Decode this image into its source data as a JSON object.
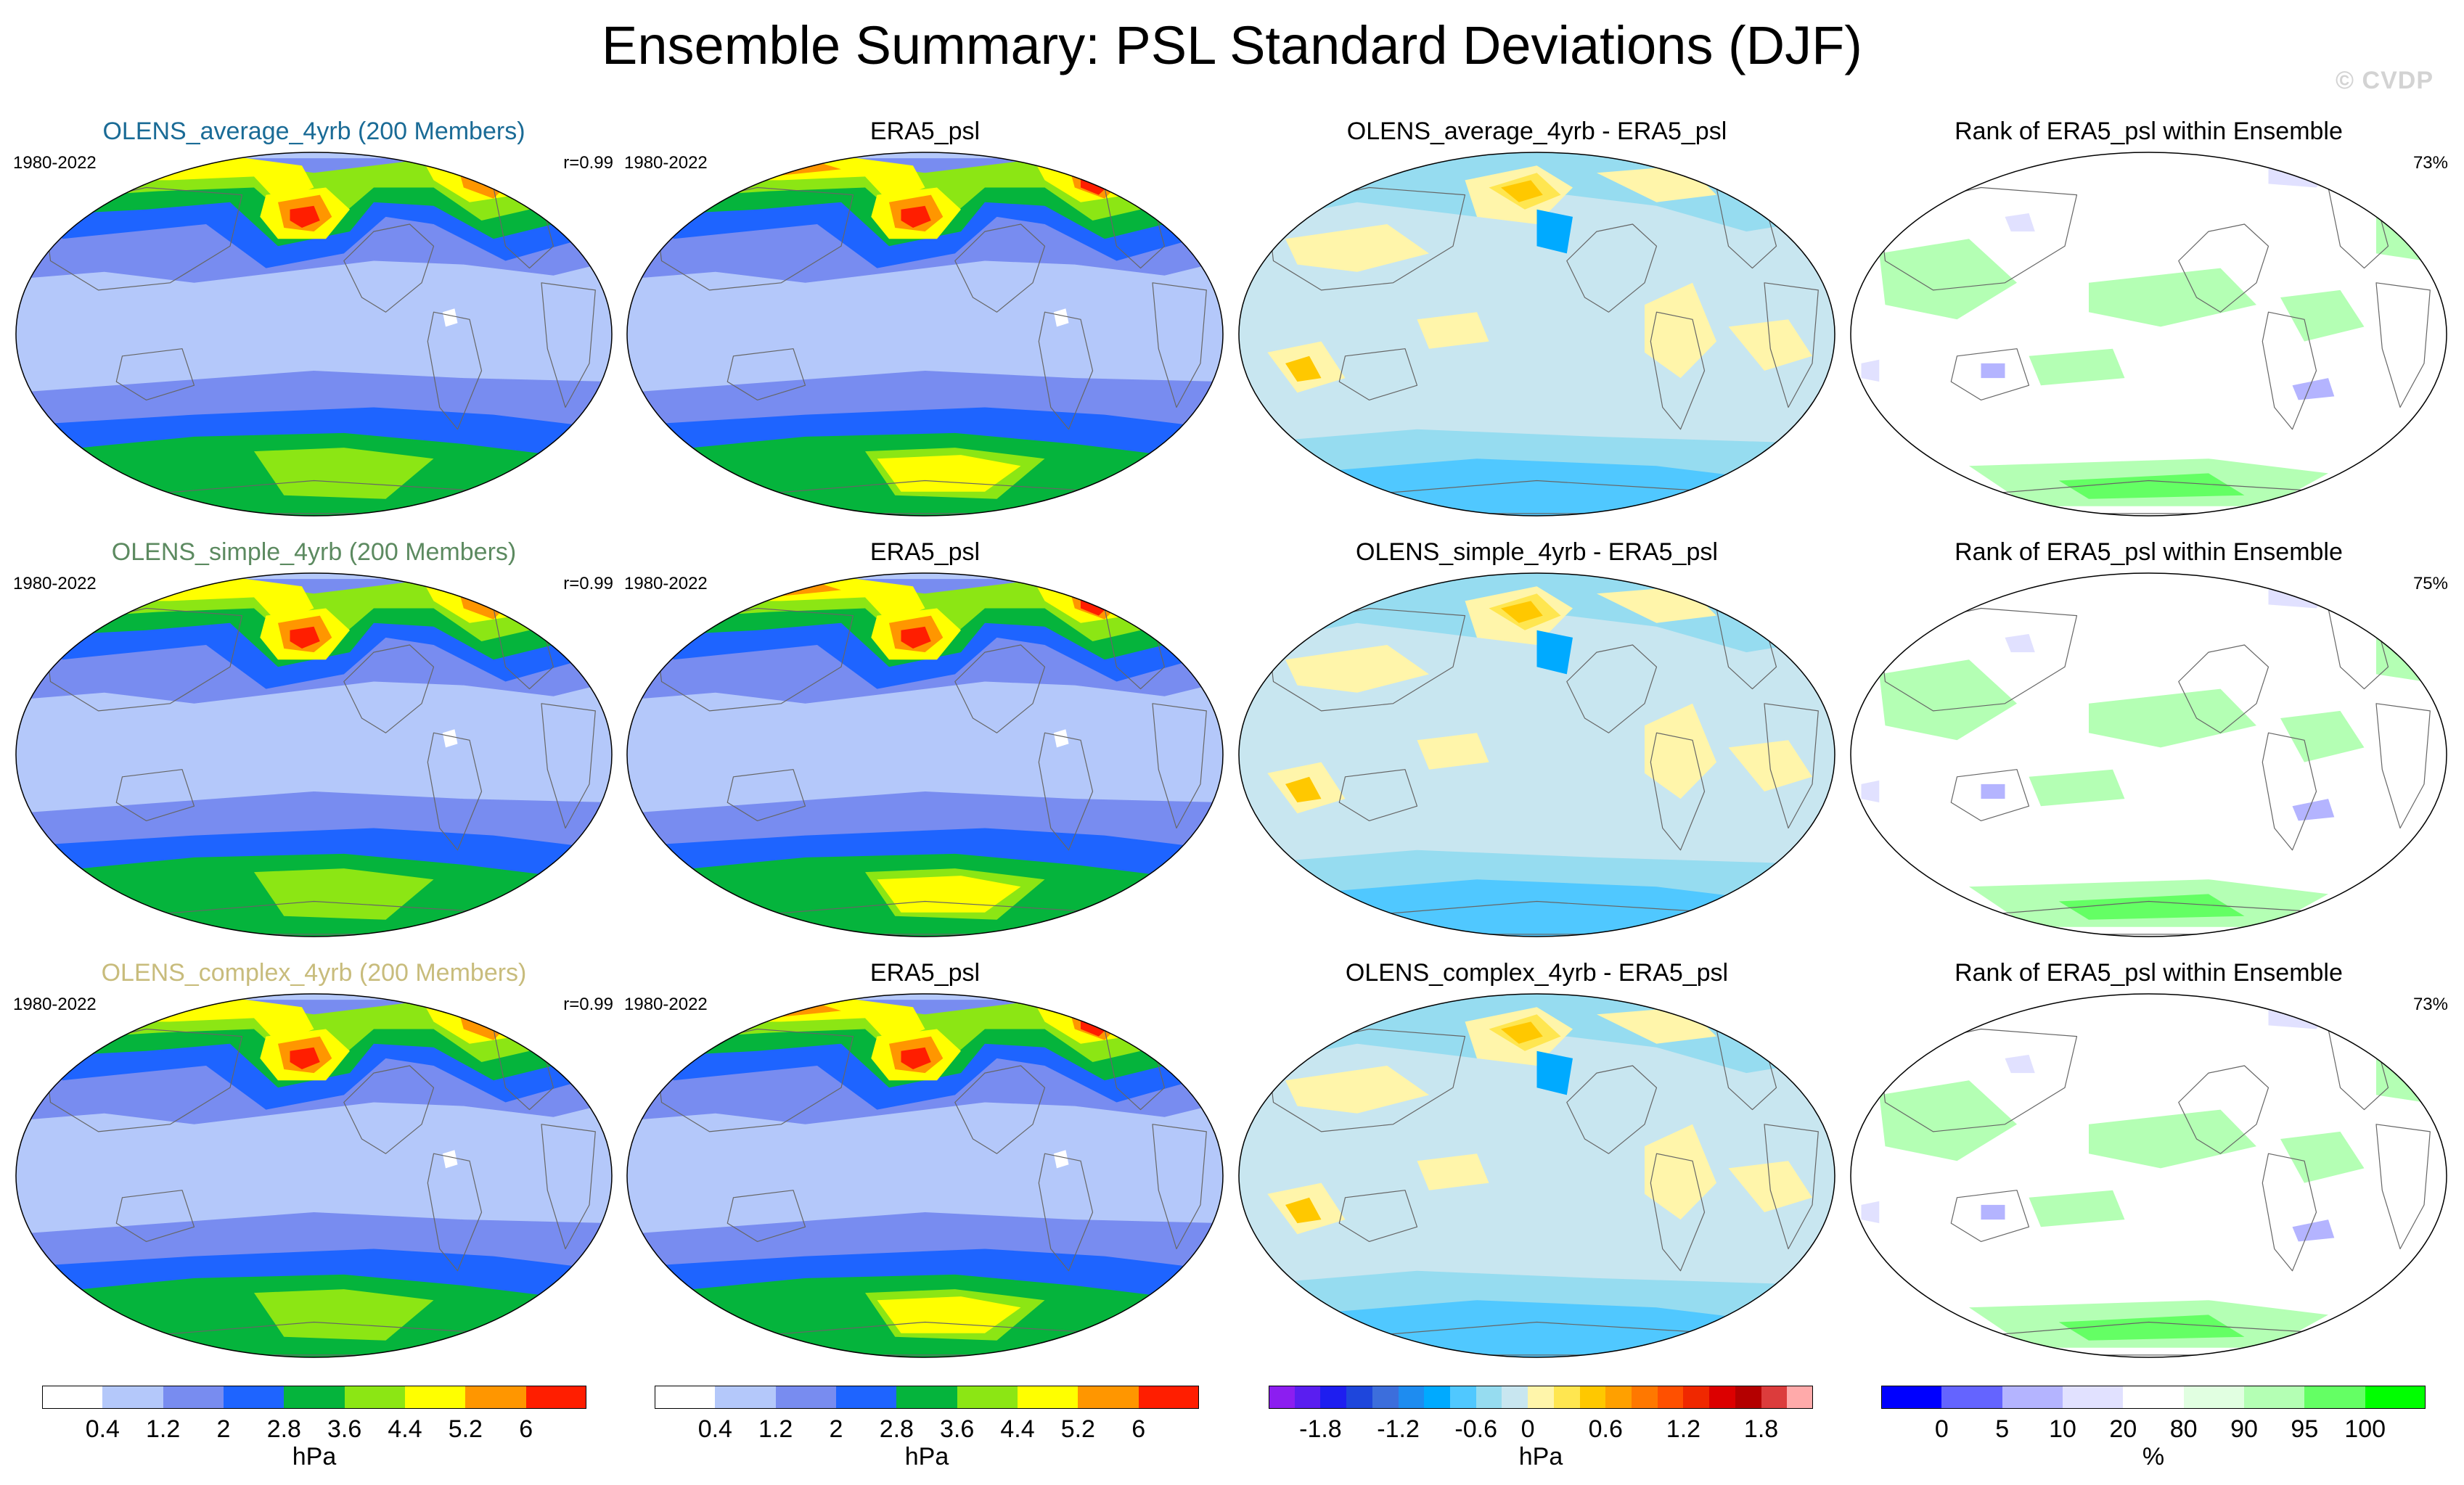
{
  "header": {
    "title": "Ensemble Summary: PSL Standard Deviations (DJF)",
    "watermark": "© CVDP"
  },
  "chart_data": {
    "type": "panel-grid",
    "panels": [
      {
        "title": "OLENS_average_4yrb (200 Members)",
        "title_color": "#1a6b96",
        "left": "1980-2022",
        "right": "r=0.99",
        "kind": "std"
      },
      {
        "title": "ERA5_psl",
        "title_color": "#000000",
        "left": "1980-2022",
        "right": "",
        "kind": "std"
      },
      {
        "title": "OLENS_average_4yrb - ERA5_psl",
        "title_color": "#000000",
        "left": "",
        "right": "",
        "kind": "diff"
      },
      {
        "title": "Rank of ERA5_psl within Ensemble",
        "title_color": "#000000",
        "left": "",
        "right": "73%",
        "kind": "rank"
      },
      {
        "title": "OLENS_simple_4yrb (200 Members)",
        "title_color": "#5c8a60",
        "left": "1980-2022",
        "right": "r=0.99",
        "kind": "std"
      },
      {
        "title": "ERA5_psl",
        "title_color": "#000000",
        "left": "1980-2022",
        "right": "",
        "kind": "std"
      },
      {
        "title": "OLENS_simple_4yrb - ERA5_psl",
        "title_color": "#000000",
        "left": "",
        "right": "",
        "kind": "diff"
      },
      {
        "title": "Rank of ERA5_psl within Ensemble",
        "title_color": "#000000",
        "left": "",
        "right": "75%",
        "kind": "rank"
      },
      {
        "title": "OLENS_complex_4yrb (200 Members)",
        "title_color": "#c8bc7c",
        "left": "1980-2022",
        "right": "r=0.99",
        "kind": "std"
      },
      {
        "title": "ERA5_psl",
        "title_color": "#000000",
        "left": "1980-2022",
        "right": "",
        "kind": "std"
      },
      {
        "title": "OLENS_complex_4yrb - ERA5_psl",
        "title_color": "#000000",
        "left": "",
        "right": "",
        "kind": "diff"
      },
      {
        "title": "Rank of ERA5_psl within Ensemble",
        "title_color": "#000000",
        "left": "",
        "right": "73%",
        "kind": "rank"
      }
    ],
    "colorbars": [
      {
        "name": "std-model",
        "unit": "hPa",
        "ticks": [
          "0.4",
          "1.2",
          "2",
          "2.8",
          "3.6",
          "4.4",
          "5.2",
          "6"
        ],
        "colors": [
          "#ffffff",
          "#b4c8fa",
          "#788cf0",
          "#1e64ff",
          "#05b43c",
          "#8ce614",
          "#ffff00",
          "#ff9600",
          "#ff1e00"
        ]
      },
      {
        "name": "std-obs",
        "unit": "hPa",
        "ticks": [
          "0.4",
          "1.2",
          "2",
          "2.8",
          "3.6",
          "4.4",
          "5.2",
          "6"
        ],
        "colors": [
          "#ffffff",
          "#b4c8fa",
          "#788cf0",
          "#1e64ff",
          "#05b43c",
          "#8ce614",
          "#ffff00",
          "#ff9600",
          "#ff1e00"
        ]
      },
      {
        "name": "diff",
        "unit": "hPa",
        "ticks": [
          "-1.8",
          "-1.2",
          "-0.6",
          "0",
          "0.6",
          "1.2",
          "1.8"
        ],
        "colors": [
          "#8c1ef0",
          "#5a1ef0",
          "#1e1ef0",
          "#1e46dc",
          "#3c6edc",
          "#1e8cf0",
          "#00aaff",
          "#50c8ff",
          "#96dcf0",
          "#c8e6f0",
          "#fff5aa",
          "#ffe650",
          "#ffc800",
          "#ffa000",
          "#ff7800",
          "#ff5000",
          "#f02800",
          "#dc0000",
          "#b40000",
          "#dc3c3c",
          "#ffaaaa"
        ]
      },
      {
        "name": "rank",
        "unit": "%",
        "ticks": [
          "0",
          "5",
          "10",
          "20",
          "80",
          "90",
          "95",
          "100"
        ],
        "colors": [
          "#0000ff",
          "#6464ff",
          "#b4b4ff",
          "#e1e1ff",
          "#ffffff",
          "#e1ffe1",
          "#b4ffb4",
          "#64ff64",
          "#00ff00"
        ]
      }
    ]
  }
}
